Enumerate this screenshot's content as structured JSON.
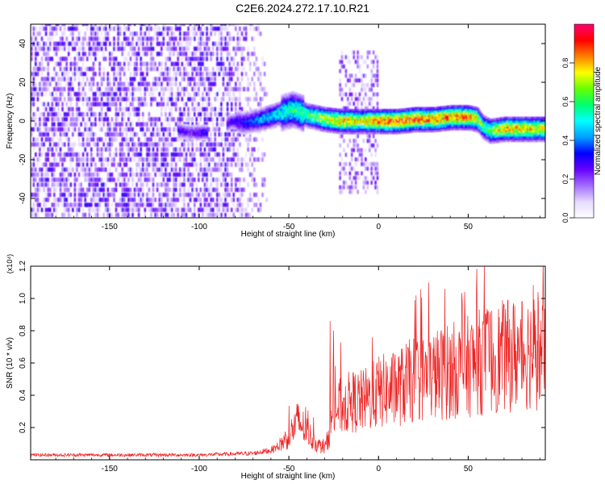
{
  "title": "C2E6.2024.272.17.10.R21",
  "colors": {
    "snr_line": "#ee2222",
    "colormap": [
      "#ffffff",
      "#e6d9ff",
      "#a26bff",
      "#6600ff",
      "#0000ff",
      "#00a0ff",
      "#00ffff",
      "#00ff70",
      "#66ff00",
      "#ffff00",
      "#ff8000",
      "#ff0000",
      "#ff0070"
    ]
  },
  "chart_data": [
    {
      "type": "heatmap",
      "title": "C2E6.2024.272.17.10.R21",
      "xlabel": "Height of straight line (km)",
      "ylabel": "Frequency (Hz)",
      "xlim": [
        -194,
        93
      ],
      "ylim": [
        -50,
        50
      ],
      "xticks": [
        "-150",
        "-100",
        "-50",
        "0",
        "50"
      ],
      "xtick_values": [
        -150,
        -100,
        -50,
        0,
        50
      ],
      "yticks": [
        "40",
        "20",
        "0",
        "-20",
        "-40"
      ],
      "ytick_values": [
        40,
        20,
        0,
        -20,
        -40
      ],
      "colorbar": {
        "label": "Normalized spectral amplitude",
        "range": [
          0,
          1
        ],
        "ticks": [
          "0.0",
          "0.2",
          "0.4",
          "0.6",
          "0.8"
        ],
        "tick_values": [
          0.0,
          0.2,
          0.4,
          0.6,
          0.8
        ]
      },
      "ridge": {
        "x": [
          -112,
          -105,
          -100,
          -93,
          -82,
          -75,
          -65,
          -55,
          -48,
          -40,
          -30,
          -20,
          -10,
          0,
          10,
          20,
          30,
          40,
          50,
          55,
          58,
          62,
          70,
          80,
          93
        ],
        "freq": [
          -5,
          -6,
          -6,
          -6,
          0,
          -1,
          1,
          4,
          6,
          3,
          1,
          0,
          0,
          0,
          0,
          1,
          1,
          2,
          2,
          1,
          -3,
          -5,
          -4,
          -4,
          -4
        ],
        "amplitude": [
          0.3,
          0.25,
          0.3,
          0.35,
          0.3,
          0.35,
          0.45,
          0.55,
          0.6,
          0.65,
          0.75,
          0.85,
          0.8,
          0.9,
          0.95,
          0.95,
          0.9,
          0.9,
          0.9,
          0.8,
          0.6,
          0.7,
          0.85,
          0.85,
          0.8
        ]
      },
      "regions": [
        {
          "name": "noise",
          "x_range": [
            -194,
            -65
          ],
          "freq_range": [
            -50,
            50
          ],
          "amplitude": [
            0.05,
            0.3
          ]
        },
        {
          "name": "burst",
          "x_range": [
            -22,
            -1
          ],
          "freq_range": [
            -38,
            36
          ],
          "amplitude": [
            0.05,
            0.25
          ]
        }
      ]
    },
    {
      "type": "line",
      "xlabel": "Height of straight line (km)",
      "ylabel": "SNR (10 * v/v)",
      "y_multiplier": "(x10⁴)",
      "xlim": [
        -194,
        93
      ],
      "ylim": [
        0,
        1.2
      ],
      "xticks": [
        "-150",
        "-100",
        "-50",
        "0",
        "50"
      ],
      "xtick_values": [
        -150,
        -100,
        -50,
        0,
        50
      ],
      "yticks": [
        "1.2",
        "1.0",
        "0.8",
        "0.6",
        "0.4",
        "0.2"
      ],
      "ytick_values": [
        1.2,
        1.0,
        0.8,
        0.6,
        0.4,
        0.2
      ],
      "envelope": {
        "x": [
          -194,
          -150,
          -100,
          -70,
          -60,
          -55,
          -50,
          -45,
          -40,
          -35,
          -30,
          -28,
          -25,
          -20,
          -15,
          -10,
          -5,
          0,
          10,
          20,
          30,
          40,
          50,
          60,
          70,
          80,
          85,
          90,
          93
        ],
        "y": [
          0.03,
          0.03,
          0.03,
          0.04,
          0.06,
          0.09,
          0.15,
          0.24,
          0.18,
          0.1,
          0.07,
          0.14,
          0.3,
          0.34,
          0.36,
          0.36,
          0.38,
          0.42,
          0.44,
          0.5,
          0.52,
          0.55,
          0.58,
          0.62,
          0.64,
          0.66,
          0.68,
          0.66,
          0.6
        ]
      },
      "peaks": [
        {
          "x": -27,
          "y": 0.86
        },
        {
          "x": -25,
          "y": 0.8
        },
        {
          "x": 37,
          "y": 1.06
        },
        {
          "x": 48,
          "y": 1.04
        },
        {
          "x": 59,
          "y": 1.22
        },
        {
          "x": 70,
          "y": 0.96
        },
        {
          "x": 80,
          "y": 0.98
        },
        {
          "x": 89,
          "y": 1.04
        },
        {
          "x": 92,
          "y": 1.0
        }
      ]
    }
  ]
}
